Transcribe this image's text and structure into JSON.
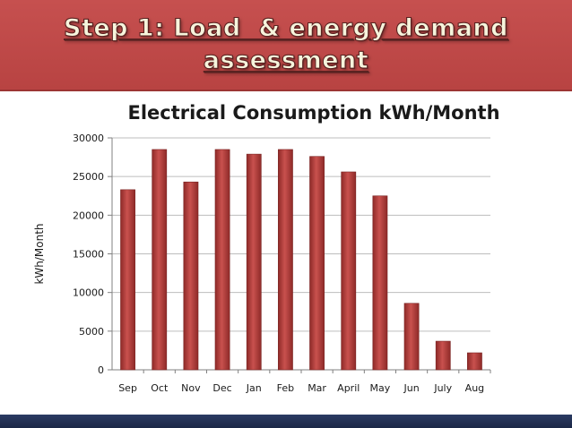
{
  "slide": {
    "title_line1": "Step 1: Load  & energy demand",
    "title_line2": "assessment"
  },
  "colors": {
    "banner": "#c0504d",
    "bar": "#c0504d",
    "bar_dark": "#8e2a28",
    "bottom_bar": "#24325a"
  },
  "chart_data": {
    "type": "bar",
    "title": "Electrical Consumption kWh/Month",
    "xlabel": "",
    "ylabel": "kWh/Month",
    "categories": [
      "Sep",
      "Oct",
      "Nov",
      "Dec",
      "Jan",
      "Feb",
      "Mar",
      "April",
      "May",
      "Jun",
      "July",
      "Aug"
    ],
    "values": [
      23300,
      28500,
      24300,
      28500,
      27900,
      28500,
      27600,
      25600,
      22500,
      8600,
      3700,
      2200
    ],
    "ylim": [
      0,
      30000
    ],
    "yticks": [
      0,
      5000,
      10000,
      15000,
      20000,
      25000,
      30000
    ],
    "grid": true,
    "legend": "none"
  }
}
